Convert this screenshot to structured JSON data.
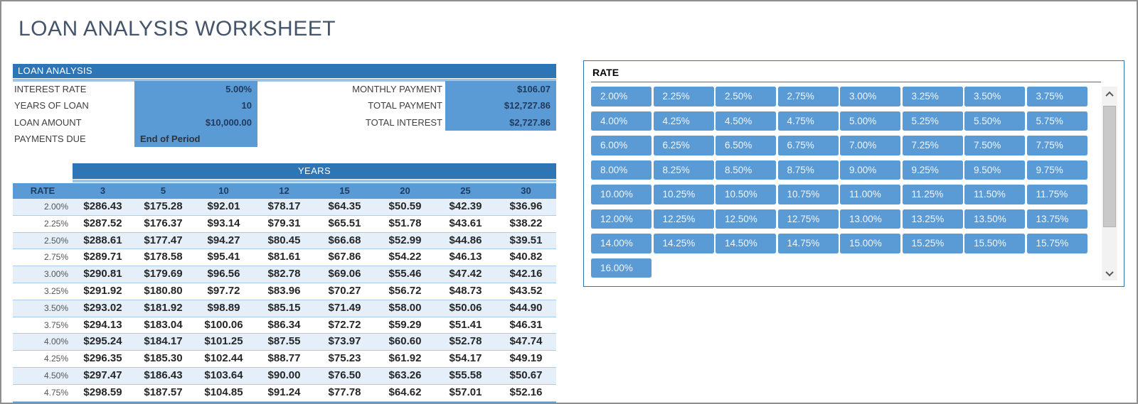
{
  "window": {
    "title": "LOAN ANALYSIS WORKSHEET"
  },
  "loan_analysis": {
    "header": "LOAN ANALYSIS",
    "fields_left": [
      {
        "label": "INTEREST RATE",
        "value": "5.00%"
      },
      {
        "label": "YEARS OF LOAN",
        "value": "10"
      },
      {
        "label": "LOAN AMOUNT",
        "value": "$10,000.00"
      },
      {
        "label": "PAYMENTS DUE",
        "value": "End of Period"
      }
    ],
    "fields_right": [
      {
        "label": "MONTHLY PAYMENT",
        "value": "$106.07"
      },
      {
        "label": "TOTAL PAYMENT",
        "value": "$12,727.86"
      },
      {
        "label": "TOTAL INTEREST",
        "value": "$2,727.86"
      }
    ]
  },
  "payments_table": {
    "band_title": "YEARS",
    "rate_header": "RATE",
    "year_columns": [
      "3",
      "5",
      "10",
      "12",
      "15",
      "20",
      "25",
      "30"
    ],
    "rows": [
      {
        "rate": "2.00%",
        "values": [
          "$286.43",
          "$175.28",
          "$92.01",
          "$78.17",
          "$64.35",
          "$50.59",
          "$42.39",
          "$36.96"
        ]
      },
      {
        "rate": "2.25%",
        "values": [
          "$287.52",
          "$176.37",
          "$93.14",
          "$79.31",
          "$65.51",
          "$51.78",
          "$43.61",
          "$38.22"
        ]
      },
      {
        "rate": "2.50%",
        "values": [
          "$288.61",
          "$177.47",
          "$94.27",
          "$80.45",
          "$66.68",
          "$52.99",
          "$44.86",
          "$39.51"
        ]
      },
      {
        "rate": "2.75%",
        "values": [
          "$289.71",
          "$178.58",
          "$95.41",
          "$81.61",
          "$67.86",
          "$54.22",
          "$46.13",
          "$40.82"
        ]
      },
      {
        "rate": "3.00%",
        "values": [
          "$290.81",
          "$179.69",
          "$96.56",
          "$82.78",
          "$69.06",
          "$55.46",
          "$47.42",
          "$42.16"
        ]
      },
      {
        "rate": "3.25%",
        "values": [
          "$291.92",
          "$180.80",
          "$97.72",
          "$83.96",
          "$70.27",
          "$56.72",
          "$48.73",
          "$43.52"
        ]
      },
      {
        "rate": "3.50%",
        "values": [
          "$293.02",
          "$181.92",
          "$98.89",
          "$85.15",
          "$71.49",
          "$58.00",
          "$50.06",
          "$44.90"
        ]
      },
      {
        "rate": "3.75%",
        "values": [
          "$294.13",
          "$183.04",
          "$100.06",
          "$86.34",
          "$72.72",
          "$59.29",
          "$51.41",
          "$46.31"
        ]
      },
      {
        "rate": "4.00%",
        "values": [
          "$295.24",
          "$184.17",
          "$101.25",
          "$87.55",
          "$73.97",
          "$60.60",
          "$52.78",
          "$47.74"
        ]
      },
      {
        "rate": "4.25%",
        "values": [
          "$296.35",
          "$185.30",
          "$102.44",
          "$88.77",
          "$75.23",
          "$61.92",
          "$54.17",
          "$49.19"
        ]
      },
      {
        "rate": "4.50%",
        "values": [
          "$297.47",
          "$186.43",
          "$103.64",
          "$90.00",
          "$76.50",
          "$63.26",
          "$55.58",
          "$50.67"
        ]
      },
      {
        "rate": "4.75%",
        "values": [
          "$298.59",
          "$187.57",
          "$104.85",
          "$91.24",
          "$77.78",
          "$64.62",
          "$57.01",
          "$52.16"
        ]
      }
    ]
  },
  "rate_picker": {
    "title": "RATE",
    "rates": [
      "2.00%",
      "2.25%",
      "2.50%",
      "2.75%",
      "3.00%",
      "3.25%",
      "3.50%",
      "3.75%",
      "4.00%",
      "4.25%",
      "4.50%",
      "4.75%",
      "5.00%",
      "5.25%",
      "5.50%",
      "5.75%",
      "6.00%",
      "6.25%",
      "6.50%",
      "6.75%",
      "7.00%",
      "7.25%",
      "7.50%",
      "7.75%",
      "8.00%",
      "8.25%",
      "8.50%",
      "8.75%",
      "9.00%",
      "9.25%",
      "9.50%",
      "9.75%",
      "10.00%",
      "10.25%",
      "10.50%",
      "10.75%",
      "11.00%",
      "11.25%",
      "11.50%",
      "11.75%",
      "12.00%",
      "12.25%",
      "12.50%",
      "12.75%",
      "13.00%",
      "13.25%",
      "13.50%",
      "13.75%",
      "14.00%",
      "14.25%",
      "14.50%",
      "14.75%",
      "15.00%",
      "15.25%",
      "15.50%",
      "15.75%",
      "16.00%"
    ]
  },
  "colors": {
    "accent-dark": "#2E75B6",
    "accent-mid": "#5B9BD5",
    "accent-light": "#9DC3E6",
    "row-tint": "#E4EFF9",
    "row-border": "#ABCDEC",
    "title-color": "#44546A",
    "text-dark": "#262626",
    "navy-value": "#1F3A5F",
    "label-gray": "#404040",
    "rate-gray": "#555555"
  }
}
